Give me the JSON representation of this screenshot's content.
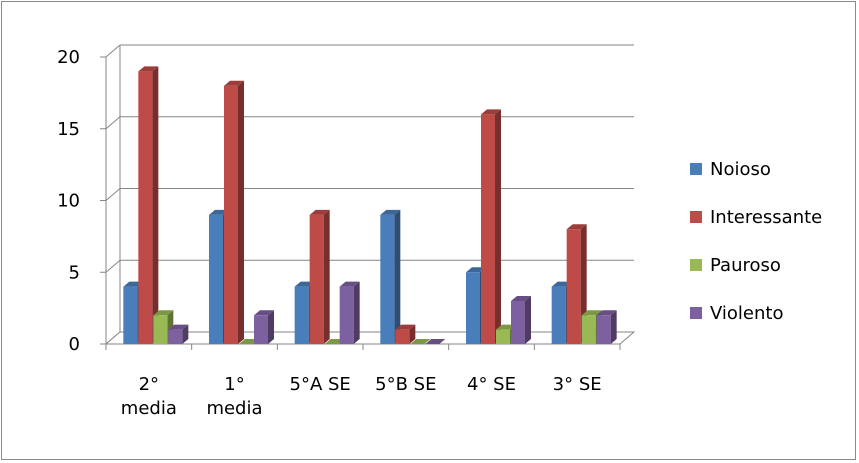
{
  "chart_data": {
    "type": "bar",
    "title": "",
    "xlabel": "",
    "ylabel": "",
    "ylim": [
      0,
      20
    ],
    "yticks": [
      "0",
      "5",
      "10",
      "15",
      "20"
    ],
    "grid": true,
    "legend_position": "right",
    "categories": [
      [
        "2°",
        "media"
      ],
      [
        "1°",
        "media"
      ],
      [
        "5°A SE"
      ],
      [
        "5°B SE"
      ],
      [
        "4° SE"
      ],
      [
        "3° SE"
      ]
    ],
    "series": [
      {
        "name": "Noioso",
        "color": "#4a7ebb",
        "values": [
          4,
          9,
          4,
          9,
          5,
          4
        ]
      },
      {
        "name": "Interessante",
        "color": "#be4b48",
        "values": [
          19,
          18,
          9,
          1,
          16,
          8
        ]
      },
      {
        "name": "Pauroso",
        "color": "#98b954",
        "values": [
          2,
          0,
          0,
          0,
          1,
          2
        ]
      },
      {
        "name": "Violento",
        "color": "#7d60a0",
        "values": [
          1,
          2,
          4,
          0,
          3,
          2
        ]
      }
    ]
  }
}
